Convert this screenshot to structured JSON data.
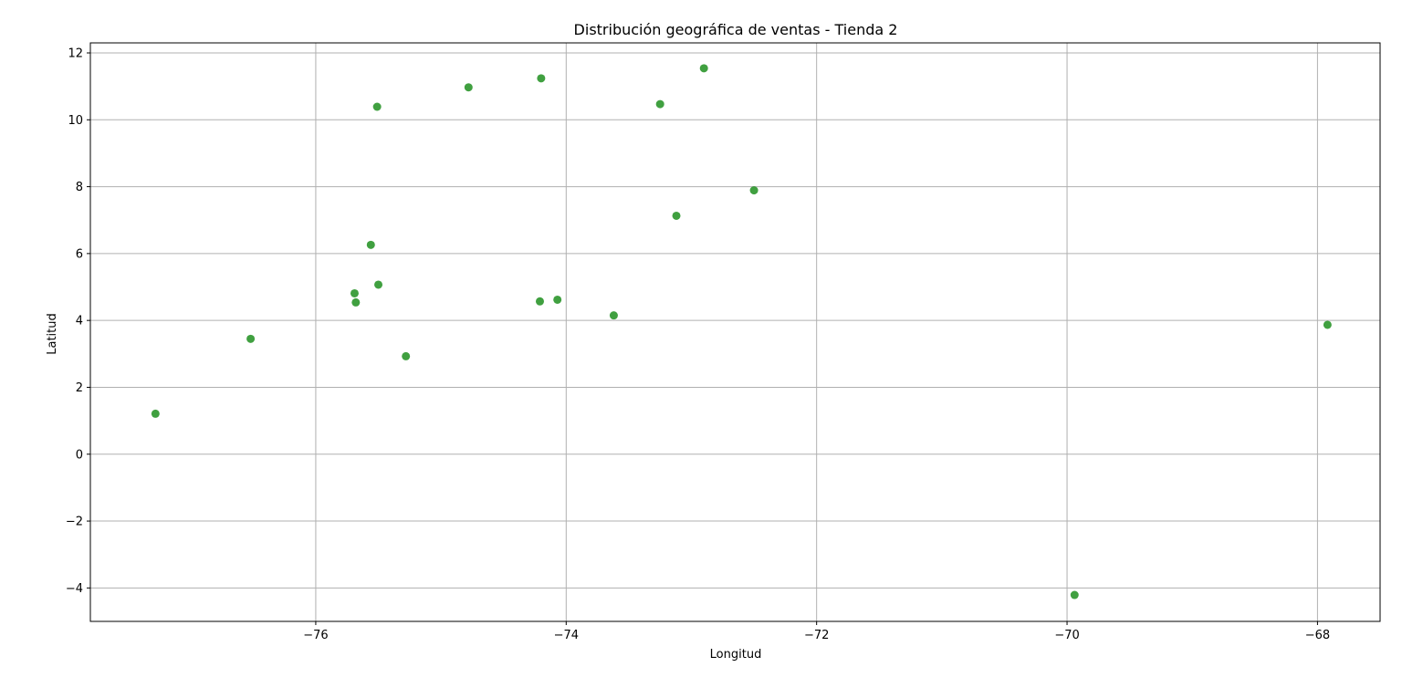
{
  "chart_data": {
    "type": "scatter",
    "title": "Distribución geográfica de ventas - Tienda 2",
    "xlabel": "Longitud",
    "ylabel": "Latitud",
    "xlim": [
      -77.8,
      -67.5
    ],
    "ylim": [
      -5.0,
      12.3
    ],
    "xticks": [
      -76,
      -74,
      -72,
      -70,
      -68
    ],
    "xtick_labels": [
      "−76",
      "−74",
      "−72",
      "−70",
      "−68"
    ],
    "yticks": [
      -4,
      -2,
      0,
      2,
      4,
      6,
      8,
      10,
      12
    ],
    "ytick_labels": [
      "−4",
      "−2",
      "0",
      "2",
      "4",
      "6",
      "8",
      "10",
      "12"
    ],
    "grid": true,
    "marker_color": "#008000",
    "points": [
      {
        "x": -77.28,
        "y": 1.21
      },
      {
        "x": -76.52,
        "y": 3.45
      },
      {
        "x": -75.69,
        "y": 4.81
      },
      {
        "x": -75.68,
        "y": 4.54
      },
      {
        "x": -75.56,
        "y": 6.26
      },
      {
        "x": -75.51,
        "y": 10.39
      },
      {
        "x": -75.5,
        "y": 5.07
      },
      {
        "x": -75.28,
        "y": 2.93
      },
      {
        "x": -74.78,
        "y": 10.97
      },
      {
        "x": -74.21,
        "y": 4.57
      },
      {
        "x": -74.2,
        "y": 11.24
      },
      {
        "x": -74.07,
        "y": 4.62
      },
      {
        "x": -73.62,
        "y": 4.15
      },
      {
        "x": -73.25,
        "y": 10.47
      },
      {
        "x": -73.12,
        "y": 7.13
      },
      {
        "x": -72.9,
        "y": 11.54
      },
      {
        "x": -72.5,
        "y": 7.89
      },
      {
        "x": -69.94,
        "y": -4.21
      },
      {
        "x": -67.92,
        "y": 3.87
      }
    ]
  }
}
